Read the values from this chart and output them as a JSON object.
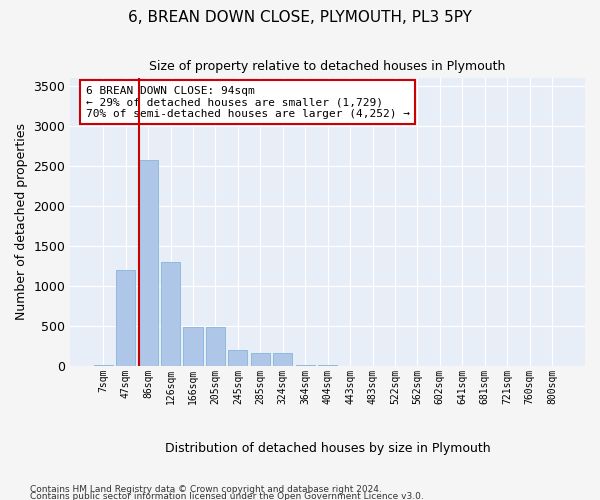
{
  "title": "6, BREAN DOWN CLOSE, PLYMOUTH, PL3 5PY",
  "subtitle": "Size of property relative to detached houses in Plymouth",
  "xlabel": "Distribution of detached houses by size in Plymouth",
  "ylabel": "Number of detached properties",
  "bin_labels": [
    "7sqm",
    "47sqm",
    "86sqm",
    "126sqm",
    "166sqm",
    "205sqm",
    "245sqm",
    "285sqm",
    "324sqm",
    "364sqm",
    "404sqm",
    "443sqm",
    "483sqm",
    "522sqm",
    "562sqm",
    "602sqm",
    "641sqm",
    "681sqm",
    "721sqm",
    "760sqm",
    "800sqm"
  ],
  "bar_values": [
    10,
    1200,
    2580,
    1300,
    480,
    480,
    200,
    155,
    155,
    10,
    10,
    0,
    0,
    0,
    0,
    0,
    0,
    0,
    0,
    0,
    0
  ],
  "bar_color": "#aec6e8",
  "bar_edge_color": "#7aadd4",
  "background_color": "#e8eef8",
  "grid_color": "#ffffff",
  "fig_background": "#f5f5f5",
  "ylim": [
    0,
    3600
  ],
  "yticks": [
    0,
    500,
    1000,
    1500,
    2000,
    2500,
    3000,
    3500
  ],
  "property_bin_index": 2,
  "vline_color": "#cc0000",
  "annotation_text": "6 BREAN DOWN CLOSE: 94sqm\n← 29% of detached houses are smaller (1,729)\n70% of semi-detached houses are larger (4,252) →",
  "annotation_box_color": "#cc0000",
  "footnote1": "Contains HM Land Registry data © Crown copyright and database right 2024.",
  "footnote2": "Contains public sector information licensed under the Open Government Licence v3.0."
}
